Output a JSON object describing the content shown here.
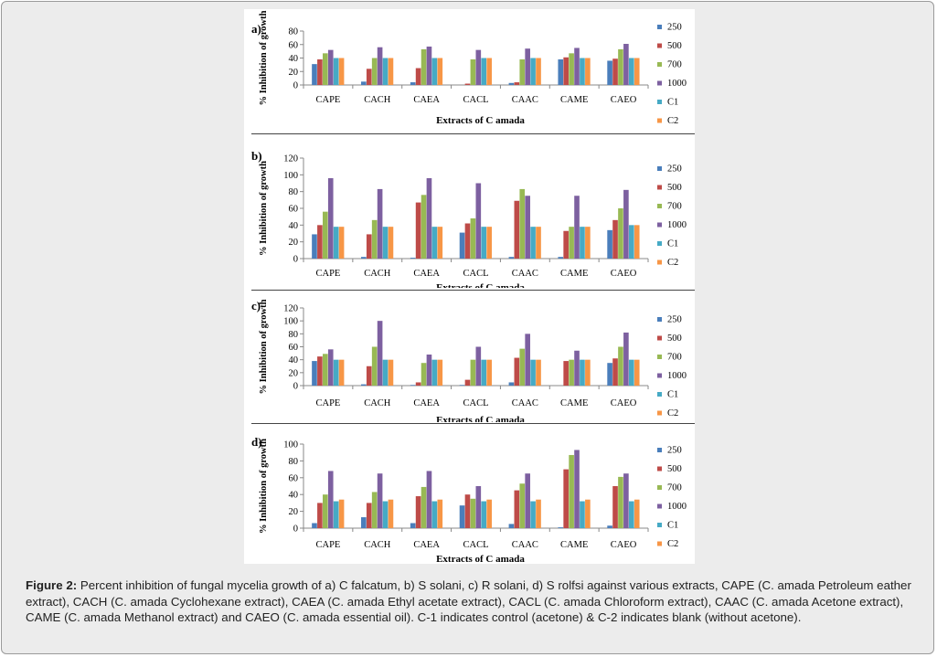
{
  "caption": {
    "label": "Figure 2:",
    "text": "Percent inhibition of fungal mycelia growth of a) C falcatum, b) S solani, c) R solani, d) S rolfsi against various extracts, CAPE (C. amada Petroleum eather extract), CACH (C. amada Cyclohexane extract), CAEA (C. amada Ethyl acetate extract), CACL (C. amada Chloroform extract), CAAC (C. amada Acetone extract), CAME (C. amada Methanol extract) and CAEO (C. amada essential oil). C-1 indicates control (acetone) & C-2 indicates blank (without acetone)."
  },
  "colors": {
    "250": "#4a7ebb",
    "500": "#be4b48",
    "700": "#98b954",
    "1000": "#7d60a0",
    "C1": "#46aac5",
    "C2": "#f79646",
    "axis": "#888888",
    "caption_bg": "#ececec"
  },
  "chart_data": [
    {
      "type": "bar",
      "panel_label": "a)",
      "ylabel": "% Inhibition of growth",
      "xlabel": "Extracts of C amada",
      "ylim": [
        0,
        80
      ],
      "yticks": [
        0,
        20,
        40,
        60,
        80
      ],
      "categories": [
        "CAPE",
        "CACH",
        "CAEA",
        "CACL",
        "CAAC",
        "CAME",
        "CAEO"
      ],
      "series": [
        {
          "name": "250",
          "values": [
            31,
            5,
            4,
            0,
            3,
            38,
            36
          ]
        },
        {
          "name": "500",
          "values": [
            38,
            24,
            25,
            2,
            4,
            41,
            39
          ]
        },
        {
          "name": "700",
          "values": [
            47,
            40,
            53,
            38,
            38,
            47,
            53
          ]
        },
        {
          "name": "1000",
          "values": [
            52,
            56,
            57,
            52,
            54,
            55,
            61
          ]
        },
        {
          "name": "C1",
          "values": [
            40,
            40,
            40,
            40,
            40,
            40,
            40
          ]
        },
        {
          "name": "C2",
          "values": [
            40,
            40,
            40,
            40,
            40,
            40,
            40
          ]
        }
      ]
    },
    {
      "type": "bar",
      "panel_label": "b)",
      "ylabel": "% Inhibition of growth",
      "xlabel": "Extracts of C amada",
      "ylim": [
        0,
        120
      ],
      "yticks": [
        0,
        20,
        40,
        60,
        80,
        100,
        120
      ],
      "categories": [
        "CAPE",
        "CACH",
        "CAEA",
        "CACL",
        "CAAC",
        "CAME",
        "CAEO"
      ],
      "series": [
        {
          "name": "250",
          "values": [
            29,
            2,
            1,
            31,
            2,
            2,
            34
          ]
        },
        {
          "name": "500",
          "values": [
            40,
            29,
            67,
            42,
            69,
            33,
            46
          ]
        },
        {
          "name": "700",
          "values": [
            56,
            46,
            76,
            48,
            83,
            38,
            60
          ]
        },
        {
          "name": "1000",
          "values": [
            96,
            83,
            96,
            90,
            75,
            75,
            82
          ]
        },
        {
          "name": "C1",
          "values": [
            38,
            38,
            38,
            38,
            38,
            38,
            40
          ]
        },
        {
          "name": "C2",
          "values": [
            38,
            38,
            38,
            38,
            38,
            38,
            40
          ]
        }
      ]
    },
    {
      "type": "bar",
      "panel_label": "c)",
      "ylabel": "% Inhibition of growth",
      "xlabel": "Extracts of C amada",
      "ylim": [
        0,
        120
      ],
      "yticks": [
        0,
        20,
        40,
        60,
        80,
        100,
        120
      ],
      "categories": [
        "CAPE",
        "CACH",
        "CAEA",
        "CACL",
        "CAAC",
        "CAME",
        "CAEO"
      ],
      "series": [
        {
          "name": "250",
          "values": [
            38,
            2,
            1,
            1,
            5,
            0,
            35
          ]
        },
        {
          "name": "500",
          "values": [
            45,
            30,
            5,
            9,
            43,
            38,
            42
          ]
        },
        {
          "name": "700",
          "values": [
            49,
            60,
            35,
            40,
            57,
            40,
            60
          ]
        },
        {
          "name": "1000",
          "values": [
            56,
            100,
            48,
            60,
            80,
            54,
            82
          ]
        },
        {
          "name": "C1",
          "values": [
            40,
            40,
            40,
            40,
            40,
            40,
            40
          ]
        },
        {
          "name": "C2",
          "values": [
            40,
            40,
            40,
            40,
            40,
            40,
            40
          ]
        }
      ]
    },
    {
      "type": "bar",
      "panel_label": "d)",
      "ylabel": "% Inhibition of growth",
      "xlabel": "Extracts of C amada",
      "ylim": [
        0,
        100
      ],
      "yticks": [
        0,
        20,
        40,
        60,
        80,
        100
      ],
      "categories": [
        "CAPE",
        "CACH",
        "CAEA",
        "CACL",
        "CAAC",
        "CAME",
        "CAEO"
      ],
      "series": [
        {
          "name": "250",
          "values": [
            6,
            13,
            6,
            27,
            5,
            1,
            3
          ]
        },
        {
          "name": "500",
          "values": [
            30,
            30,
            38,
            40,
            45,
            70,
            50
          ]
        },
        {
          "name": "700",
          "values": [
            40,
            43,
            49,
            35,
            53,
            87,
            61
          ]
        },
        {
          "name": "1000",
          "values": [
            68,
            65,
            68,
            50,
            65,
            93,
            65
          ]
        },
        {
          "name": "C1",
          "values": [
            32,
            32,
            32,
            32,
            32,
            32,
            32
          ]
        },
        {
          "name": "C2",
          "values": [
            34,
            34,
            34,
            34,
            34,
            34,
            34
          ]
        }
      ]
    }
  ]
}
